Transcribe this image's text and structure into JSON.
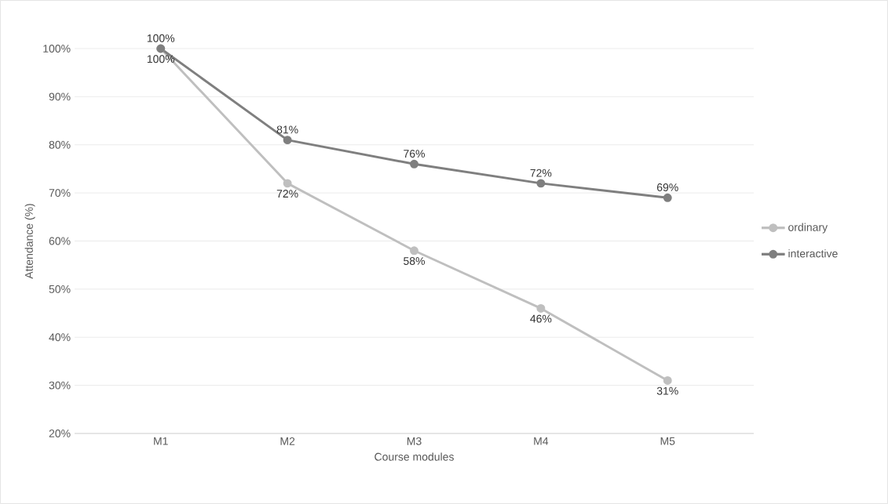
{
  "chart_data": {
    "type": "line",
    "xlabel": "Course modules",
    "ylabel": "Attendance (%)",
    "categories": [
      "M1",
      "M2",
      "M3",
      "M4",
      "M5"
    ],
    "series": [
      {
        "name": "ordinary",
        "color": "#bfbfbf",
        "values": [
          100,
          72,
          58,
          46,
          31
        ],
        "value_labels": [
          "100%",
          "72%",
          "58%",
          "46%",
          "31%"
        ]
      },
      {
        "name": "interactive",
        "color": "#7f7f7f",
        "values": [
          100,
          81,
          76,
          72,
          69
        ],
        "value_labels": [
          "100%",
          "81%",
          "76%",
          "72%",
          "69%"
        ]
      }
    ],
    "ylim": [
      20,
      100
    ],
    "yticks": [
      {
        "value": 20,
        "label": "20%"
      },
      {
        "value": 30,
        "label": "30%"
      },
      {
        "value": 40,
        "label": "40%"
      },
      {
        "value": 50,
        "label": "50%"
      },
      {
        "value": 60,
        "label": "60%"
      },
      {
        "value": 70,
        "label": "70%"
      },
      {
        "value": 80,
        "label": "80%"
      },
      {
        "value": 90,
        "label": "90%"
      },
      {
        "value": 100,
        "label": "100%"
      }
    ],
    "grid": "y",
    "legend": "right",
    "marker": "circle",
    "line_style": "solid"
  }
}
